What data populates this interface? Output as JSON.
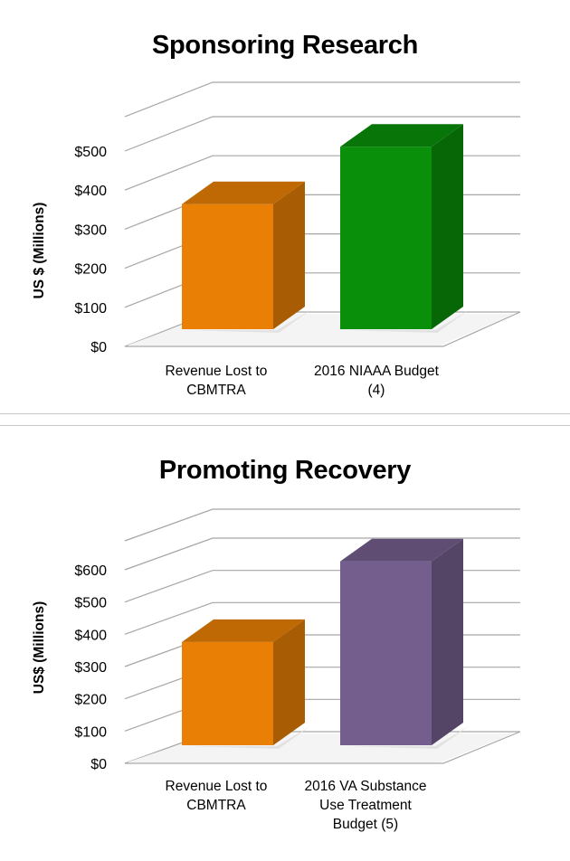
{
  "chart_data": [
    {
      "type": "bar",
      "title": "Sponsoring Research",
      "ylabel": "US $ (Millions)",
      "xlabel": "",
      "categories": [
        "Revenue Lost to CBMTRA",
        "2016 NIAAA Budget (4)"
      ],
      "category_lines": [
        [
          "Revenue Lost to",
          "CBMTRA"
        ],
        [
          "2016 NIAAA Budget",
          "(4)"
        ]
      ],
      "values": [
        320,
        467
      ],
      "ylim": [
        0,
        500
      ],
      "yticks": [
        0,
        100,
        200,
        300,
        400,
        500
      ],
      "ytick_labels": [
        "$0",
        "$100",
        "$200",
        "$300",
        "$400",
        "$500"
      ],
      "grid": true,
      "style": "3d-column",
      "colors": [
        "#e98005",
        "#0a8f0a"
      ]
    },
    {
      "type": "bar",
      "title": "Promoting Recovery",
      "ylabel": "US$ (Millions)",
      "xlabel": "",
      "categories": [
        "Revenue Lost to CBMTRA",
        "2016 VA Substance Use Treatment Budget (5)"
      ],
      "category_lines": [
        [
          "Revenue Lost to",
          "CBMTRA"
        ],
        [
          "2016 VA Substance",
          "Use Treatment",
          "Budget (5)"
        ]
      ],
      "values": [
        320,
        570
      ],
      "ylim": [
        0,
        600
      ],
      "yticks": [
        0,
        100,
        200,
        300,
        400,
        500,
        600
      ],
      "ytick_labels": [
        "$0",
        "$100",
        "$200",
        "$300",
        "$400",
        "$500",
        "$600"
      ],
      "grid": true,
      "style": "3d-column",
      "colors": [
        "#e98005",
        "#745e8e"
      ]
    }
  ]
}
